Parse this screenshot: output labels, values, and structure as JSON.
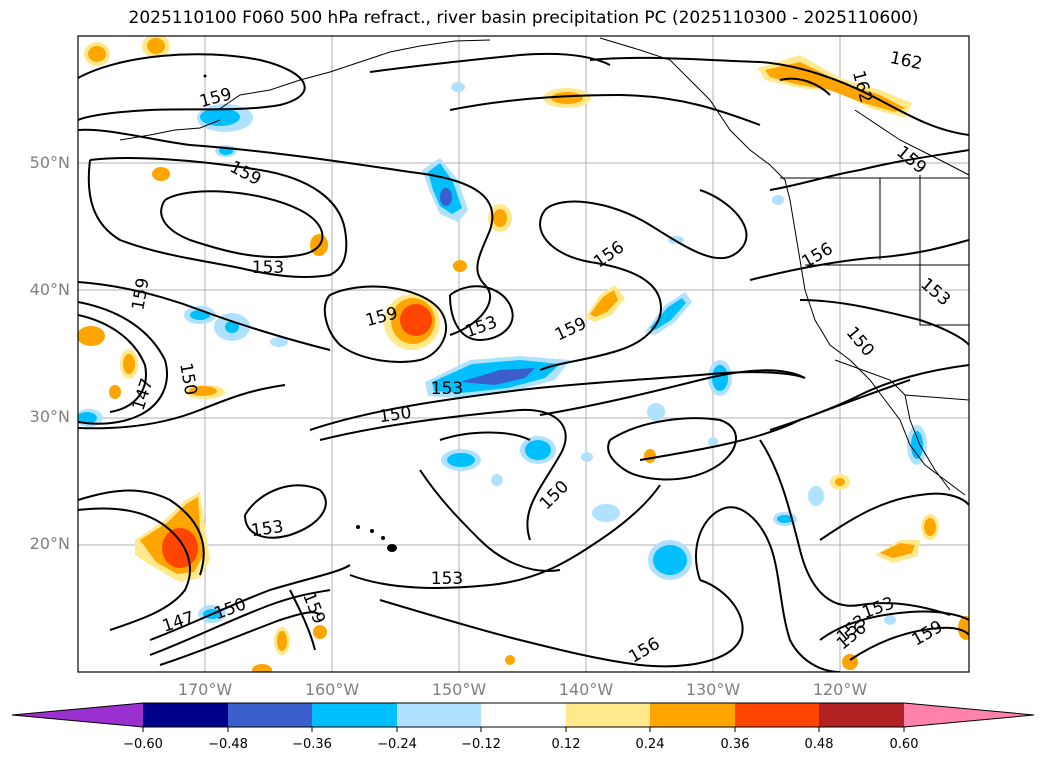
{
  "title": "2025110100 F060 500 hPa refract., river basin precipitation PC (2025110300 - 2025110600)",
  "lat_labels": [
    "50°N",
    "40°N",
    "30°N",
    "20°N"
  ],
  "lon_labels": [
    "170°W",
    "160°W",
    "150°W",
    "140°W",
    "130°W",
    "120°W"
  ],
  "contour_labels": [
    "159",
    "159",
    "159",
    "153",
    "159",
    "159",
    "153",
    "150",
    "147",
    "153",
    "150",
    "150",
    "153",
    "153",
    "147",
    "150",
    "159",
    "153",
    "156",
    "159",
    "156",
    "156",
    "162",
    "162",
    "159",
    "153",
    "150",
    "156",
    "153",
    "159",
    "156"
  ],
  "colorbar": {
    "ticks": [
      "−0.60",
      "−0.48",
      "−0.36",
      "−0.24",
      "−0.12",
      "0.12",
      "0.24",
      "0.36",
      "0.48",
      "0.60"
    ],
    "colors": [
      "#9b30d0",
      "#00008b",
      "#3a5fcd",
      "#00bfff",
      "#b0e2ff",
      "#ffffff",
      "#ffe98c",
      "#ffa500",
      "#ff4500",
      "#b22222",
      "#ff82ab"
    ]
  }
}
